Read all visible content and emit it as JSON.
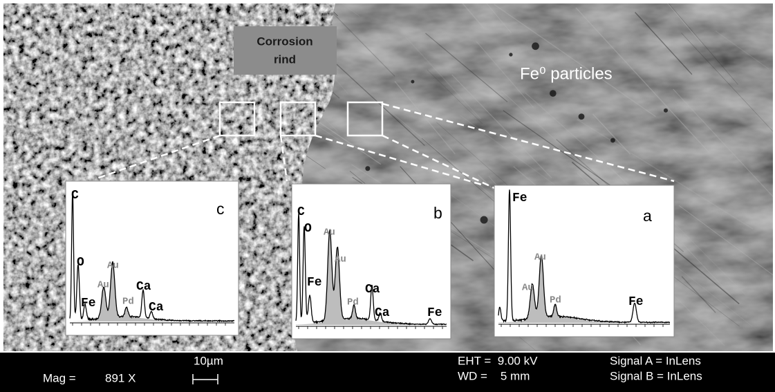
{
  "annotations": {
    "corrosion_rind": [
      "Corrosion",
      "rind"
    ],
    "fe_particles": "Fe⁰ particles"
  },
  "insets": [
    {
      "letter": "c",
      "labels": [
        "C",
        "O",
        "Au",
        "Au",
        "Fe",
        "Pd",
        "Ca",
        "Ca"
      ]
    },
    {
      "letter": "b",
      "labels": [
        "C",
        "O",
        "Au",
        "Au",
        "Fe",
        "Pd",
        "Ca",
        "Ca",
        "Fe"
      ]
    },
    {
      "letter": "a",
      "labels": [
        "Fe",
        "Au",
        "Au",
        "Pd",
        "Fe"
      ]
    }
  ],
  "info_bar": {
    "mag_label": "Mag =",
    "mag_value": "891 X",
    "scale": "10µm",
    "eht": "EHT =  9.00 kV",
    "wd": "WD =    5 mm",
    "signal_a": "Signal A = InLens",
    "signal_b": "Signal B = InLens"
  }
}
